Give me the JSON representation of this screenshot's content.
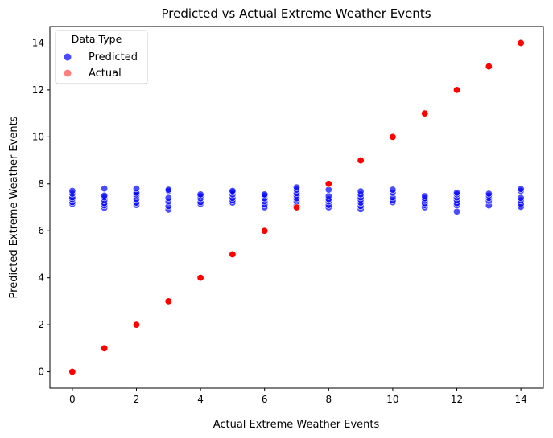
{
  "chart_data": {
    "type": "scatter",
    "title": "Predicted vs Actual Extreme Weather Events",
    "xlabel": "Actual Extreme Weather Events",
    "ylabel": "Predicted Extreme Weather Events",
    "xlim": [
      -0.7,
      14.7
    ],
    "ylim": [
      -0.7,
      14.7
    ],
    "xticks": [
      0,
      2,
      4,
      6,
      8,
      10,
      12,
      14
    ],
    "yticks": [
      0,
      2,
      4,
      6,
      8,
      10,
      12,
      14
    ],
    "grid": false,
    "legend": {
      "title": "Data Type",
      "placement": "top-left",
      "entries": [
        "Predicted",
        "Actual"
      ]
    },
    "series": [
      {
        "name": "Predicted",
        "color": "#0000ff",
        "points": [
          [
            0,
            7.15
          ],
          [
            0,
            7.22
          ],
          [
            0,
            7.35
          ],
          [
            0,
            7.42
          ],
          [
            0,
            7.58
          ],
          [
            0,
            7.7
          ],
          [
            1,
            6.98
          ],
          [
            1,
            7.08
          ],
          [
            1,
            7.18
          ],
          [
            1,
            7.3
          ],
          [
            1,
            7.42
          ],
          [
            1,
            7.5
          ],
          [
            1,
            7.8
          ],
          [
            2,
            7.1
          ],
          [
            2,
            7.2
          ],
          [
            2,
            7.35
          ],
          [
            2,
            7.48
          ],
          [
            2,
            7.55
          ],
          [
            2,
            7.62
          ],
          [
            2,
            7.8
          ],
          [
            3,
            6.9
          ],
          [
            3,
            7.05
          ],
          [
            3,
            7.25
          ],
          [
            3,
            7.4
          ],
          [
            3,
            7.7
          ],
          [
            3,
            7.75
          ],
          [
            4,
            7.15
          ],
          [
            4,
            7.22
          ],
          [
            4,
            7.38
          ],
          [
            4,
            7.48
          ],
          [
            4,
            7.55
          ],
          [
            5,
            7.2
          ],
          [
            5,
            7.3
          ],
          [
            5,
            7.4
          ],
          [
            5,
            7.55
          ],
          [
            5,
            7.65
          ],
          [
            5,
            7.7
          ],
          [
            6,
            7.0
          ],
          [
            6,
            7.12
          ],
          [
            6,
            7.25
          ],
          [
            6,
            7.38
          ],
          [
            6,
            7.5
          ],
          [
            6,
            7.55
          ],
          [
            7,
            7.08
          ],
          [
            7,
            7.25
          ],
          [
            7,
            7.38
          ],
          [
            7,
            7.5
          ],
          [
            7,
            7.6
          ],
          [
            7,
            7.75
          ],
          [
            7,
            7.85
          ],
          [
            8,
            7.0
          ],
          [
            8,
            7.1
          ],
          [
            8,
            7.25
          ],
          [
            8,
            7.35
          ],
          [
            8,
            7.48
          ],
          [
            8,
            7.75
          ],
          [
            9,
            6.92
          ],
          [
            9,
            7.05
          ],
          [
            9,
            7.2
          ],
          [
            9,
            7.32
          ],
          [
            9,
            7.42
          ],
          [
            9,
            7.55
          ],
          [
            9,
            7.68
          ],
          [
            10,
            7.22
          ],
          [
            10,
            7.3
          ],
          [
            10,
            7.42
          ],
          [
            10,
            7.62
          ],
          [
            10,
            7.75
          ],
          [
            11,
            7.0
          ],
          [
            11,
            7.1
          ],
          [
            11,
            7.18
          ],
          [
            11,
            7.28
          ],
          [
            11,
            7.38
          ],
          [
            11,
            7.48
          ],
          [
            12,
            6.82
          ],
          [
            12,
            7.08
          ],
          [
            12,
            7.18
          ],
          [
            12,
            7.3
          ],
          [
            12,
            7.42
          ],
          [
            12,
            7.55
          ],
          [
            12,
            7.62
          ],
          [
            13,
            7.08
          ],
          [
            13,
            7.28
          ],
          [
            13,
            7.4
          ],
          [
            13,
            7.5
          ],
          [
            13,
            7.58
          ],
          [
            14,
            7.02
          ],
          [
            14,
            7.15
          ],
          [
            14,
            7.3
          ],
          [
            14,
            7.4
          ],
          [
            14,
            7.7
          ],
          [
            14,
            7.78
          ]
        ]
      },
      {
        "name": "Actual",
        "color": "#ff0000",
        "points": [
          [
            0,
            0
          ],
          [
            1,
            1
          ],
          [
            2,
            2
          ],
          [
            3,
            3
          ],
          [
            4,
            4
          ],
          [
            5,
            5
          ],
          [
            6,
            6
          ],
          [
            7,
            7
          ],
          [
            8,
            8
          ],
          [
            9,
            9
          ],
          [
            10,
            10
          ],
          [
            11,
            11
          ],
          [
            12,
            12
          ],
          [
            13,
            13
          ],
          [
            14,
            14
          ]
        ]
      }
    ]
  }
}
